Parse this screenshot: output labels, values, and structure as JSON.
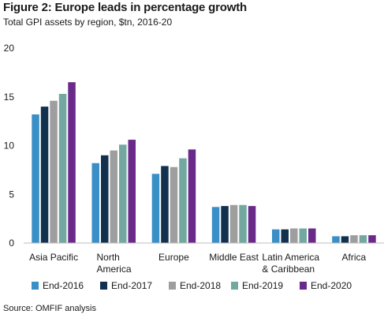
{
  "header": {
    "title": "Figure 2: Europe leads in percentage growth",
    "subtitle": "Total GPI assets by region, $tn, 2016-20"
  },
  "footer": {
    "source": "Source: OMFIF analysis"
  },
  "chart_data": {
    "type": "bar",
    "title": "Figure 2: Europe leads in percentage growth",
    "subtitle": "Total GPI assets by region, $tn, 2016-20",
    "categories": [
      [
        "Asia Pacific"
      ],
      [
        "North",
        "America"
      ],
      [
        "Europe"
      ],
      [
        "Middle East"
      ],
      [
        "Latin America",
        "& Caribbean"
      ],
      [
        "Africa"
      ]
    ],
    "series": [
      {
        "name": "End-2016",
        "color": "#3a8fc7",
        "values": [
          13.2,
          8.2,
          7.1,
          3.7,
          1.4,
          0.7
        ]
      },
      {
        "name": "End-2017",
        "color": "#12314f",
        "values": [
          14.0,
          9.0,
          7.9,
          3.8,
          1.4,
          0.7
        ]
      },
      {
        "name": "End-2018",
        "color": "#9e9e9e",
        "values": [
          14.6,
          9.5,
          7.8,
          3.9,
          1.5,
          0.8
        ]
      },
      {
        "name": "End-2019",
        "color": "#72a8a0",
        "values": [
          15.3,
          10.1,
          8.7,
          3.9,
          1.5,
          0.8
        ]
      },
      {
        "name": "End-2020",
        "color": "#6a2a8a",
        "values": [
          16.5,
          10.6,
          9.6,
          3.8,
          1.5,
          0.8
        ]
      }
    ],
    "ylim": [
      0,
      20
    ],
    "yticks": [
      0,
      5,
      10,
      15,
      20
    ],
    "grid": false,
    "legend": "bottom"
  }
}
